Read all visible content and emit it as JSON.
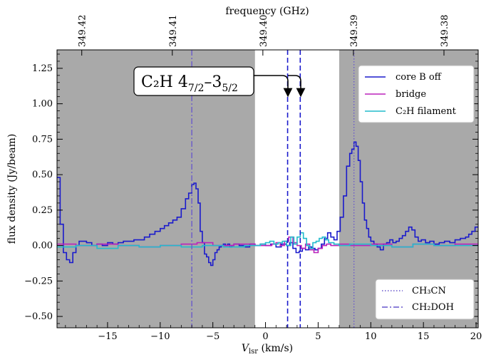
{
  "chart_data": {
    "type": "line",
    "xlabel": "V",
    "xlabel_sub": "lsr",
    "xlabel_unit": " (km/s)",
    "ylabel": "flux density (Jy/beam)",
    "top_xlabel": "frequency (GHz)",
    "xlim": [
      -19.8,
      20.2
    ],
    "ylim": [
      -0.58,
      1.38
    ],
    "x_ticks": [
      -15,
      -10,
      -5,
      0,
      5,
      10,
      15,
      20
    ],
    "x_tick_labels": [
      "−15",
      "−10",
      "−5",
      "0",
      "5",
      "10",
      "15",
      "20"
    ],
    "y_ticks": [
      -0.5,
      -0.25,
      0.0,
      0.25,
      0.5,
      0.75,
      1.0,
      1.25
    ],
    "y_tick_labels": [
      "−0.50",
      "−0.25",
      "0.00",
      "0.25",
      "0.50",
      "0.75",
      "1.00",
      "1.25"
    ],
    "top_ticks": [
      {
        "v": -17.45,
        "label": "349.42"
      },
      {
        "v": -8.85,
        "label": "349.41"
      },
      {
        "v": -0.25,
        "label": "349.40"
      },
      {
        "v": 8.35,
        "label": "349.39"
      },
      {
        "v": 16.95,
        "label": "349.38"
      }
    ],
    "shaded_regions": [
      [
        -19.8,
        -1.0
      ],
      [
        7.0,
        20.2
      ]
    ],
    "series": [
      {
        "name": "core B off",
        "color": "#1a1acc",
        "x": [
          -19.8,
          -19.5,
          -19.2,
          -18.9,
          -18.6,
          -18.3,
          -18.0,
          -17.7,
          -17.4,
          -17.0,
          -16.5,
          -16.0,
          -15.5,
          -15.0,
          -14.5,
          -14.0,
          -13.5,
          -13.0,
          -12.5,
          -12.0,
          -11.5,
          -11.0,
          -10.5,
          -10.0,
          -9.6,
          -9.2,
          -8.8,
          -8.4,
          -8.0,
          -7.6,
          -7.3,
          -7.0,
          -6.8,
          -6.6,
          -6.4,
          -6.2,
          -6.0,
          -5.8,
          -5.6,
          -5.4,
          -5.2,
          -5.0,
          -4.8,
          -4.6,
          -4.4,
          -4.2,
          -4.0,
          -3.8,
          -3.6,
          -3.4,
          -3.2,
          -3.0,
          -2.5,
          -2.0,
          -1.5,
          -1.0,
          -0.5,
          0.0,
          0.5,
          1.0,
          1.5,
          2.0,
          2.3,
          2.6,
          2.9,
          3.2,
          3.5,
          3.8,
          4.1,
          4.4,
          4.7,
          5.0,
          5.3,
          5.6,
          5.9,
          6.2,
          6.5,
          6.8,
          7.1,
          7.4,
          7.7,
          8.0,
          8.2,
          8.4,
          8.6,
          8.8,
          9.0,
          9.2,
          9.4,
          9.6,
          9.8,
          10.0,
          10.3,
          10.6,
          10.9,
          11.2,
          11.5,
          11.8,
          12.1,
          12.4,
          12.7,
          13.0,
          13.3,
          13.6,
          13.9,
          14.2,
          14.5,
          14.8,
          15.2,
          15.6,
          16.0,
          16.5,
          17.0,
          17.5,
          18.0,
          18.5,
          19.0,
          19.3,
          19.6,
          19.9,
          20.2
        ],
        "y": [
          0.48,
          0.15,
          -0.05,
          -0.1,
          -0.12,
          -0.05,
          0.0,
          0.03,
          0.03,
          0.02,
          0.0,
          0.01,
          0.0,
          0.02,
          0.01,
          0.02,
          0.03,
          0.03,
          0.04,
          0.04,
          0.06,
          0.08,
          0.1,
          0.12,
          0.14,
          0.16,
          0.18,
          0.2,
          0.26,
          0.33,
          0.37,
          0.43,
          0.44,
          0.4,
          0.3,
          0.1,
          0.02,
          -0.06,
          -0.08,
          -0.12,
          -0.14,
          -0.1,
          -0.05,
          -0.03,
          -0.01,
          0.0,
          0.01,
          0.0,
          0.01,
          -0.01,
          0.0,
          0.01,
          0.0,
          -0.01,
          0.01,
          0.0,
          0.01,
          0.0,
          0.01,
          -0.01,
          0.01,
          0.0,
          0.02,
          -0.02,
          -0.05,
          -0.04,
          -0.02,
          -0.03,
          -0.01,
          -0.02,
          -0.03,
          -0.02,
          0.01,
          0.05,
          0.09,
          0.06,
          0.04,
          0.1,
          0.2,
          0.35,
          0.56,
          0.65,
          0.68,
          0.73,
          0.7,
          0.6,
          0.45,
          0.3,
          0.18,
          0.12,
          0.06,
          0.03,
          0.01,
          -0.01,
          -0.03,
          0.01,
          0.02,
          0.04,
          0.02,
          0.03,
          0.05,
          0.07,
          0.1,
          0.13,
          0.11,
          0.06,
          0.03,
          0.04,
          0.02,
          0.03,
          0.01,
          0.02,
          0.03,
          0.02,
          0.04,
          0.05,
          0.06,
          0.08,
          0.1,
          0.13,
          0.13
        ]
      },
      {
        "name": "bridge",
        "color": "#bb22bb",
        "x": [
          -19.8,
          -18.0,
          -16.0,
          -14.0,
          -12.0,
          -10.0,
          -8.0,
          -6.5,
          -5.0,
          -3.0,
          -1.0,
          0.0,
          0.6,
          1.0,
          1.4,
          1.8,
          2.2,
          2.6,
          3.0,
          3.4,
          3.8,
          4.2,
          4.6,
          5.0,
          5.4,
          5.8,
          6.2,
          7.0,
          8.0,
          10.0,
          12.0,
          14.0,
          16.0,
          18.0,
          20.2
        ],
        "y": [
          0.01,
          0.0,
          0.01,
          0.0,
          -0.01,
          0.0,
          0.01,
          0.02,
          0.0,
          0.01,
          0.0,
          0.0,
          0.01,
          0.02,
          0.0,
          0.03,
          0.06,
          0.02,
          0.0,
          -0.02,
          0.01,
          -0.03,
          -0.05,
          -0.02,
          0.0,
          0.01,
          0.0,
          0.01,
          0.0,
          0.01,
          -0.01,
          0.01,
          0.0,
          0.01,
          0.0
        ]
      },
      {
        "name": "C₂H filament",
        "color": "#22bbcc",
        "x": [
          -19.8,
          -18.0,
          -16.0,
          -14.0,
          -12.0,
          -10.0,
          -8.0,
          -6.0,
          -4.0,
          -2.0,
          -1.0,
          -0.5,
          0.0,
          0.4,
          0.8,
          1.2,
          1.6,
          2.0,
          2.4,
          2.7,
          3.0,
          3.3,
          3.6,
          3.9,
          4.2,
          4.5,
          4.8,
          5.1,
          5.4,
          5.7,
          6.0,
          6.5,
          7.0,
          8.0,
          10.0,
          12.0,
          14.0,
          16.0,
          18.0,
          20.2
        ],
        "y": [
          -0.01,
          0.0,
          -0.02,
          0.0,
          -0.01,
          0.0,
          -0.01,
          0.0,
          -0.01,
          0.0,
          0.0,
          0.01,
          0.02,
          0.03,
          0.01,
          0.02,
          0.03,
          0.0,
          0.06,
          0.01,
          0.06,
          0.09,
          0.05,
          0.0,
          -0.02,
          0.02,
          0.03,
          0.05,
          0.06,
          0.04,
          0.02,
          0.01,
          0.0,
          0.01,
          0.0,
          -0.01,
          0.01,
          0.0,
          0.0,
          0.0
        ]
      }
    ],
    "vlines": [
      {
        "name": "CH₃CN",
        "x": 8.4,
        "style": "dotted",
        "color": "#6655cc"
      },
      {
        "name": "CH₂DOH",
        "x": -7.0,
        "style": "dashdot",
        "color": "#6655cc"
      }
    ],
    "c2h_lines": [
      2.1,
      3.3
    ],
    "annotation": {
      "main": "C₂H 4",
      "sub1": "7/2",
      "mid": "–3",
      "sub2": "5/2"
    },
    "legend_upper": [
      "core B off",
      "bridge",
      "C₂H filament"
    ],
    "legend_lower": [
      "CH₃CN",
      "CH₂DOH"
    ]
  }
}
